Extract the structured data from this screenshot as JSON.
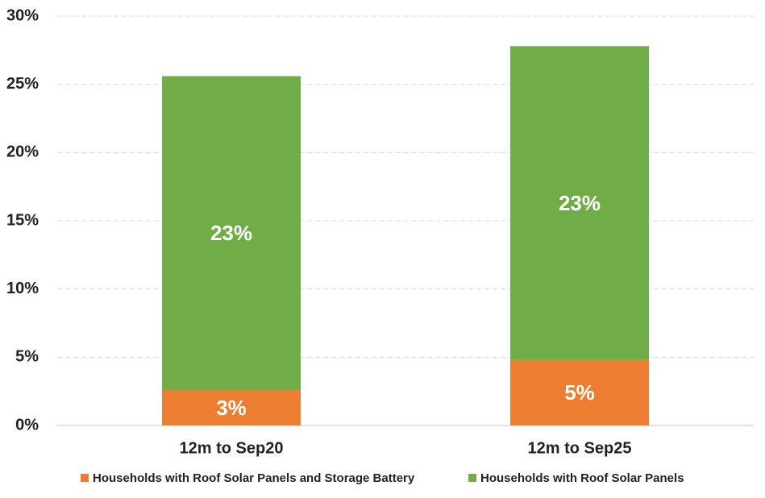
{
  "chart_data": {
    "type": "stacked_bar",
    "categories": [
      "12m to Sep20",
      "12m to Sep25"
    ],
    "series": [
      {
        "name": "Households with Roof Solar Panels and Storage Battery",
        "color": "#ed7d31",
        "values": [
          2.6,
          4.8
        ],
        "value_labels": [
          "3%",
          "5%"
        ]
      },
      {
        "name": "Households with Roof Solar Panels",
        "color": "#70ad47",
        "values": [
          23.0,
          23.0
        ],
        "value_labels": [
          "23%",
          "23%"
        ]
      }
    ],
    "ylim": [
      0,
      30
    ],
    "yticks": [
      {
        "value": 0,
        "label": "0%"
      },
      {
        "value": 5,
        "label": "5%"
      },
      {
        "value": 10,
        "label": "10%"
      },
      {
        "value": 15,
        "label": "15%"
      },
      {
        "value": 20,
        "label": "20%"
      },
      {
        "value": 25,
        "label": "25%"
      },
      {
        "value": 30,
        "label": "30%"
      }
    ],
    "grid": true,
    "legend": "bottom"
  }
}
